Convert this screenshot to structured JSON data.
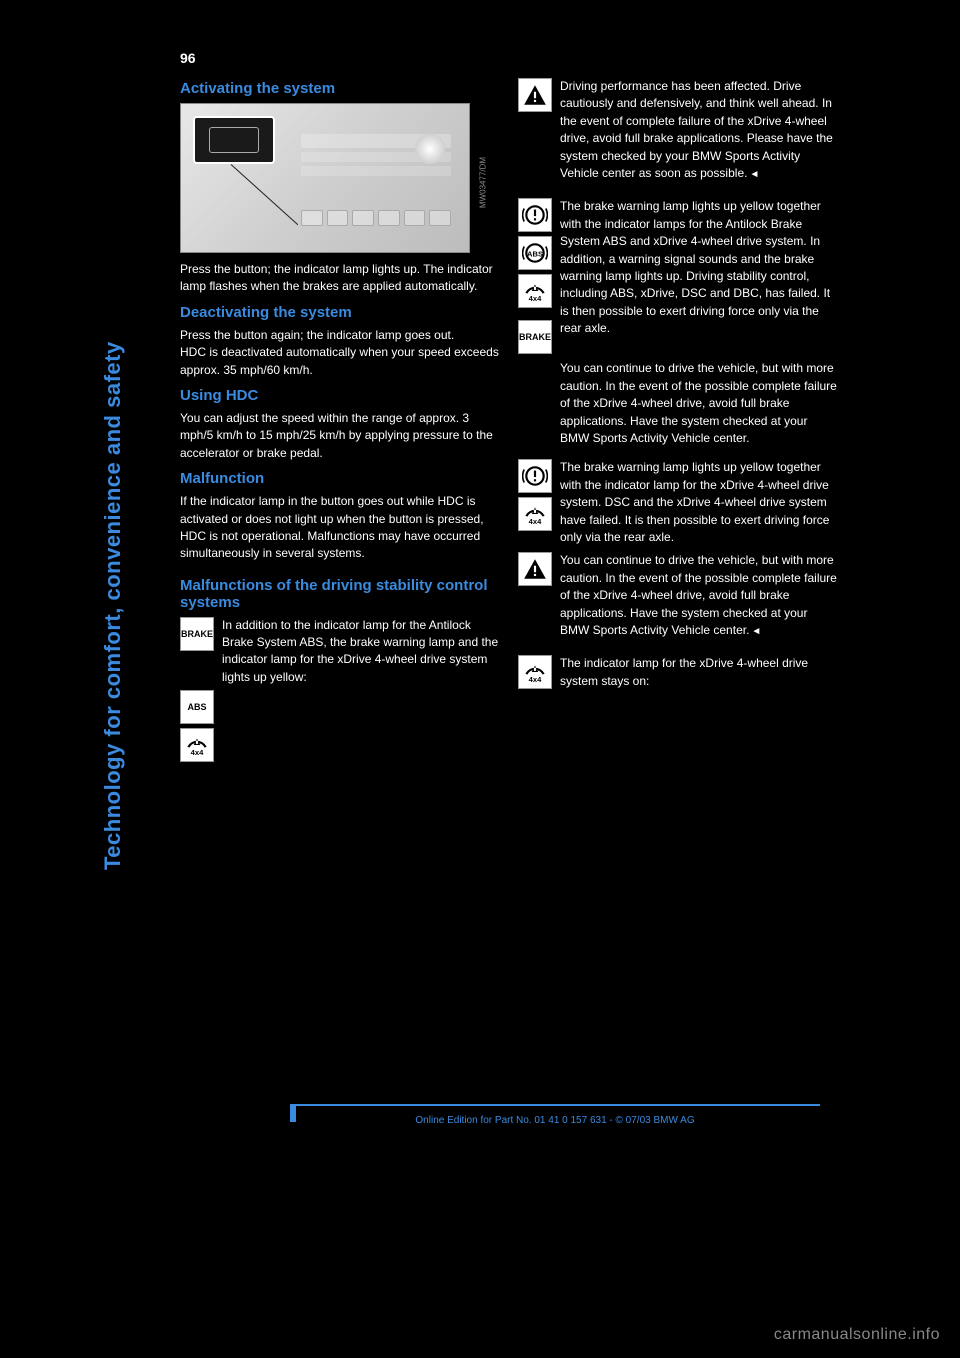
{
  "page_number": "96",
  "sidebar_title": "Technology for comfort, convenience and safety",
  "figure_credit": "MW03477/DM",
  "sections": {
    "activating": {
      "heading": "Activating the system",
      "body": "Press the button; the indicator lamp lights up. The indicator lamp flashes when the brakes are applied automatically."
    },
    "deactivating": {
      "heading": "Deactivating the system",
      "body": "Press the button again; the indicator lamp goes out.\nHDC is deactivated automatically when your speed exceeds approx. 35 mph/60 km/h."
    },
    "using": {
      "heading": "Using HDC",
      "body": "You can adjust the speed within the range of approx. 3 mph/5 km/h to 15 mph/25 km/h by applying pressure to the accelerator or brake pedal."
    },
    "malfunction": {
      "heading": "Malfunction",
      "body_left": "If the indicator lamp in the button goes out while HDC is activated or does not light up when the button is pressed, HDC is not operational. Malfunctions may have occurred simultaneously in several systems.",
      "heading2": "Malfunctions of the driving stability control systems",
      "body_left2": "In addition to the indicator lamp for the Antilock Brake System ABS, the brake warning lamp and the indicator lamp for the xDrive 4-wheel drive system lights up yellow:",
      "body_right_top": "Driving performance has been affected. Drive cautiously and defensively, and think well ahead. In the event of complete failure of the xDrive 4-wheel drive, avoid full brake applications. Please have the system checked by your BMW Sports Activity Vehicle center as soon as possible.",
      "body_right_mid1": "The brake warning lamp lights up yellow together with the indicator lamps for the Antilock Brake System ABS and xDrive 4-wheel drive system. In addition, a warning signal sounds and the brake warning lamp lights up. Driving stability control, including ABS, xDrive, DSC and DBC, has failed. It is then possible to exert driving force only via the rear axle.",
      "body_right_mid1b": "You can continue to drive the vehicle, but with more caution. In the event of the possible complete failure of the xDrive 4-wheel drive, avoid full brake applications. Have the system checked at your BMW Sports Activity Vehicle center.",
      "body_right_mid2": "The brake warning lamp lights up yellow together with the indicator lamp for the xDrive 4-wheel drive system. DSC and the xDrive 4-wheel drive system have failed. It is then possible to exert driving force only via the rear axle.",
      "body_right_mid2b": "You can continue to drive the vehicle, but with more caution. In the event of the possible complete failure of the xDrive 4-wheel drive, avoid full brake applications. Have the system checked at your BMW Sports Activity Vehicle center.",
      "body_right_bottom": "The indicator lamp for the xDrive 4-wheel drive system stays on:"
    }
  },
  "icons": {
    "warn_triangle": "warning-triangle",
    "brake_circle": "brake-circle-exclaim",
    "abs_circle": "abs-circle",
    "fourx4": "4x4-arc",
    "brake_text": "BRAKE",
    "abs_text": "ABS"
  },
  "icon_svg": {
    "warn_triangle": "<svg class='ic' viewBox='0 0 24 24'><path fill='#000' d='M12 3 L22 21 L2 21 Z'/><rect x='11' y='9' width='2' height='6' fill='#fff'/><rect x='11' y='16.5' width='2' height='2' fill='#fff'/></svg>",
    "brake_circle": "<svg class='ic' viewBox='0 0 24 24'><circle cx='12' cy='12' r='8' fill='none' stroke='#000' stroke-width='2'/><path d='M2 6 A14 14 0 0 0 2 18' fill='none' stroke='#000' stroke-width='1.5'/><path d='M22 6 A14 14 0 0 1 22 18' fill='none' stroke='#000' stroke-width='1.5'/><rect x='11' y='7' width='2' height='6' fill='#000'/><rect x='11' y='15' width='2' height='2' fill='#000'/></svg>",
    "abs_circle": "<svg class='ic' viewBox='0 0 24 24'><circle cx='12' cy='12' r='8' fill='none' stroke='#000' stroke-width='2'/><path d='M2 6 A14 14 0 0 0 2 18' fill='none' stroke='#000' stroke-width='1.5'/><path d='M22 6 A14 14 0 0 1 22 18' fill='none' stroke='#000' stroke-width='1.5'/><text x='12' y='15' font-size='7' font-weight='bold' text-anchor='middle' fill='#000'>ABS</text></svg>",
    "fourx4": "<svg class='ic' viewBox='0 0 24 24'><path d='M4 14 A9 9 0 0 1 20 14' fill='none' stroke='#000' stroke-width='2'/><path fill='#000' d='M12 6 L15 12 L9 12 Z'/><rect x='11' y='8' width='2' height='3' fill='#fff'/><text x='12' y='21' font-size='7' font-weight='bold' text-anchor='middle' fill='#000'>4x4</text></svg>"
  },
  "footer": "Online Edition for Part No. 01 41 0 157 631 - © 07/03 BMW AG",
  "watermark": "carmanualsonline.info",
  "colors": {
    "accent": "#3a8be0",
    "background": "#000000",
    "text": "#ffffff",
    "figure_bg": "#d4d4d4"
  }
}
